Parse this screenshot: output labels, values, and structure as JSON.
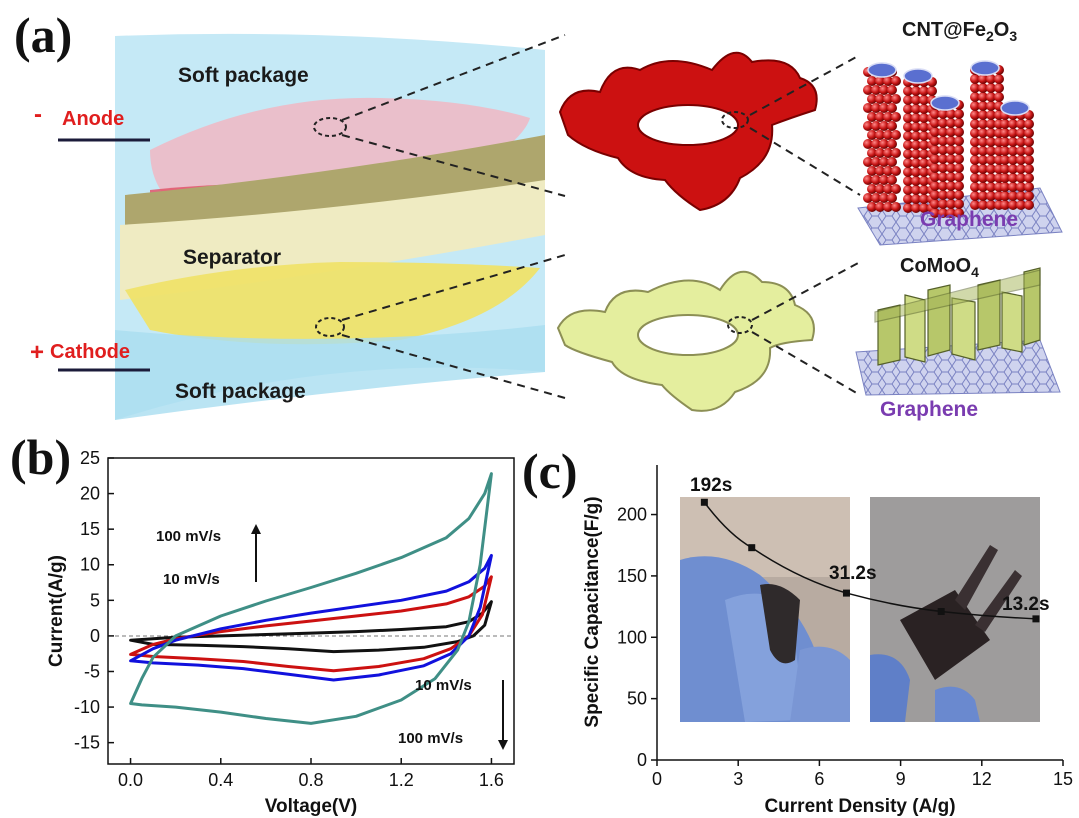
{
  "panel_labels": {
    "a": "(a)",
    "b": "(b)",
    "c": "(c)"
  },
  "panel_a": {
    "soft_package_top": "Soft package",
    "soft_package_bottom": "Soft package",
    "anode_sign": "-",
    "anode": "Anode",
    "cathode_sign": "+",
    "cathode": "Cathode",
    "separator": "Separator",
    "anode_material": "CNT@Fe2O3",
    "cathode_material": "CoMoO4",
    "substrate_top": "Graphene",
    "substrate_bottom": "Graphene",
    "colors": {
      "anode": "#cc1111",
      "cathode": "#e4ee9e",
      "package": "#a9e1f3",
      "separator": "#b8b07a",
      "graphene_label": "#7a3cb0",
      "electrode_label": "#e01e1e"
    }
  },
  "chart_data": [
    {
      "type": "line",
      "panel": "b",
      "xlabel": "Voltage(V)",
      "ylabel": "Current(A/g)",
      "xlim": [
        -0.1,
        1.7
      ],
      "ylim": [
        -18,
        25
      ],
      "xticks": [
        "0.0",
        "0.4",
        "0.8",
        "1.2",
        "1.6"
      ],
      "yticks": [
        "-15",
        "-10",
        "-5",
        "0",
        "5",
        "10",
        "15",
        "20",
        "25"
      ],
      "annotations": {
        "upper_high": "100 mV/s",
        "upper_low": "10 mV/s",
        "lower_low": "10 mV/s",
        "lower_high": "100 mV/s"
      },
      "series": [
        {
          "color": "#111111",
          "top": [
            [
              0.0,
              -0.6
            ],
            [
              0.2,
              -0.2
            ],
            [
              0.4,
              0.0
            ],
            [
              0.6,
              0.2
            ],
            [
              0.8,
              0.4
            ],
            [
              1.0,
              0.6
            ],
            [
              1.2,
              0.9
            ],
            [
              1.4,
              1.3
            ],
            [
              1.5,
              2.0
            ],
            [
              1.56,
              3.2
            ],
            [
              1.6,
              4.8
            ]
          ],
          "bottom": [
            [
              1.6,
              4.8
            ],
            [
              1.57,
              1.5
            ],
            [
              1.52,
              0.0
            ],
            [
              1.45,
              -0.8
            ],
            [
              1.3,
              -1.6
            ],
            [
              1.1,
              -2.0
            ],
            [
              0.9,
              -2.2
            ],
            [
              0.7,
              -1.8
            ],
            [
              0.5,
              -1.5
            ],
            [
              0.3,
              -1.3
            ],
            [
              0.1,
              -1.2
            ],
            [
              0.0,
              -0.6
            ]
          ]
        },
        {
          "color": "#cc1111",
          "top": [
            [
              0.0,
              -2.6
            ],
            [
              0.1,
              -1.2
            ],
            [
              0.2,
              -0.4
            ],
            [
              0.4,
              0.6
            ],
            [
              0.6,
              1.4
            ],
            [
              0.8,
              2.1
            ],
            [
              1.0,
              2.8
            ],
            [
              1.2,
              3.5
            ],
            [
              1.4,
              4.5
            ],
            [
              1.5,
              5.5
            ],
            [
              1.57,
              7.0
            ],
            [
              1.6,
              8.3
            ]
          ],
          "bottom": [
            [
              1.6,
              8.3
            ],
            [
              1.56,
              3.0
            ],
            [
              1.5,
              0.0
            ],
            [
              1.42,
              -1.8
            ],
            [
              1.3,
              -3.2
            ],
            [
              1.1,
              -4.3
            ],
            [
              0.9,
              -4.9
            ],
            [
              0.7,
              -4.3
            ],
            [
              0.5,
              -3.6
            ],
            [
              0.3,
              -3.2
            ],
            [
              0.1,
              -2.9
            ],
            [
              0.0,
              -2.6
            ]
          ]
        },
        {
          "color": "#1111dd",
          "top": [
            [
              0.0,
              -3.5
            ],
            [
              0.1,
              -1.8
            ],
            [
              0.2,
              -0.6
            ],
            [
              0.4,
              1.0
            ],
            [
              0.6,
              2.2
            ],
            [
              0.8,
              3.2
            ],
            [
              1.0,
              4.1
            ],
            [
              1.2,
              5.0
            ],
            [
              1.4,
              6.3
            ],
            [
              1.5,
              7.6
            ],
            [
              1.57,
              9.5
            ],
            [
              1.6,
              11.3
            ]
          ],
          "bottom": [
            [
              1.6,
              11.3
            ],
            [
              1.55,
              4.0
            ],
            [
              1.5,
              0.0
            ],
            [
              1.42,
              -2.5
            ],
            [
              1.3,
              -4.2
            ],
            [
              1.1,
              -5.5
            ],
            [
              0.9,
              -6.2
            ],
            [
              0.7,
              -5.4
            ],
            [
              0.5,
              -4.6
            ],
            [
              0.3,
              -4.1
            ],
            [
              0.1,
              -3.8
            ],
            [
              0.0,
              -3.5
            ]
          ]
        },
        {
          "color": "#3f8f86",
          "top": [
            [
              0.0,
              -9.5
            ],
            [
              0.05,
              -6.0
            ],
            [
              0.1,
              -3.0
            ],
            [
              0.2,
              0.0
            ],
            [
              0.4,
              2.8
            ],
            [
              0.6,
              4.9
            ],
            [
              0.8,
              6.8
            ],
            [
              1.0,
              8.8
            ],
            [
              1.2,
              11.0
            ],
            [
              1.4,
              13.8
            ],
            [
              1.5,
              16.5
            ],
            [
              1.57,
              20.0
            ],
            [
              1.6,
              22.8
            ]
          ],
          "bottom": [
            [
              1.6,
              22.8
            ],
            [
              1.55,
              10.0
            ],
            [
              1.5,
              2.0
            ],
            [
              1.45,
              -2.0
            ],
            [
              1.35,
              -6.0
            ],
            [
              1.2,
              -9.0
            ],
            [
              1.0,
              -11.3
            ],
            [
              0.8,
              -12.3
            ],
            [
              0.6,
              -11.6
            ],
            [
              0.4,
              -10.7
            ],
            [
              0.2,
              -10.0
            ],
            [
              0.05,
              -9.7
            ],
            [
              0.0,
              -9.5
            ]
          ]
        }
      ]
    },
    {
      "type": "line",
      "panel": "c",
      "xlabel": "Current Density (A/g)",
      "ylabel": "Specific Capacitance(F/g)",
      "xlim": [
        0,
        15
      ],
      "ylim": [
        0,
        220
      ],
      "xticks": [
        "0",
        "3",
        "6",
        "9",
        "12",
        "15"
      ],
      "yticks": [
        "0",
        "50",
        "100",
        "150",
        "200"
      ],
      "x": [
        1.75,
        3.5,
        7.0,
        10.5,
        14.0
      ],
      "values": [
        210,
        173,
        136,
        121,
        115
      ],
      "annotations": [
        "192s",
        "31.2s",
        "13.2s"
      ]
    }
  ]
}
